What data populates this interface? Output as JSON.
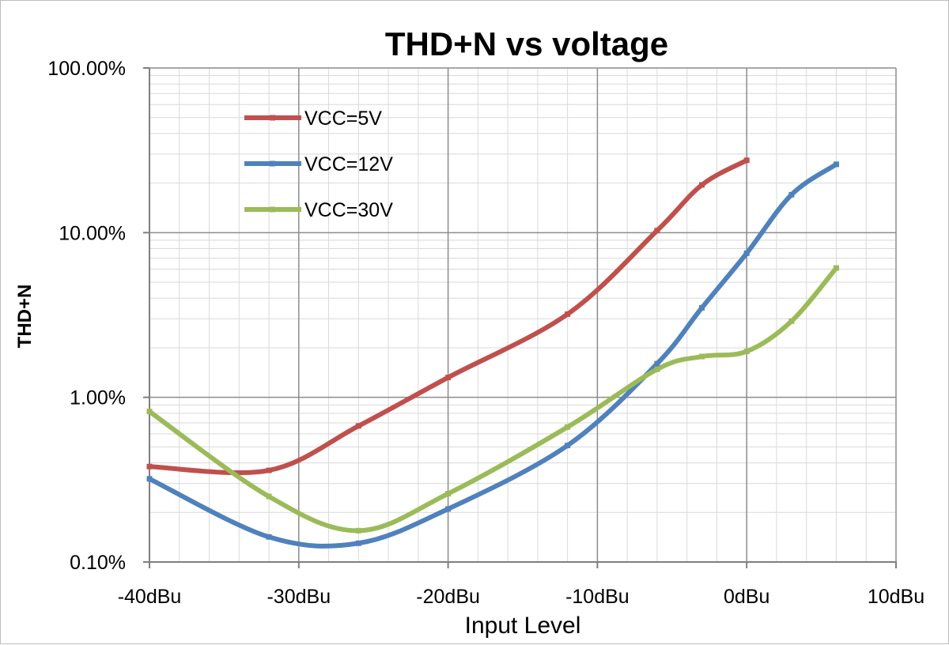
{
  "chart_data": {
    "type": "line",
    "title": "THD+N vs voltage",
    "xlabel": "Input Level",
    "ylabel": "THD+N",
    "x_scale": "linear",
    "y_scale": "log",
    "xlim": [
      -40,
      10
    ],
    "ylim": [
      0.1,
      100
    ],
    "x_ticks": [
      -40,
      -30,
      -20,
      -10,
      0,
      10
    ],
    "x_tick_labels": [
      "-40dBu",
      "-30dBu",
      "-20dBu",
      "-10dBu",
      "0dBu",
      "10dBu"
    ],
    "y_ticks": [
      0.1,
      1,
      10,
      100
    ],
    "y_tick_labels": [
      "0.10%",
      "1.00%",
      "10.00%",
      "100.00%"
    ],
    "grid": true,
    "legend_position": "top-left",
    "series": [
      {
        "name": "VCC=5V",
        "color": "#c0504d",
        "x": [
          -40,
          -32,
          -26,
          -20,
          -12,
          -6,
          -3,
          0
        ],
        "y": [
          0.38,
          0.36,
          0.67,
          1.32,
          3.2,
          10.3,
          19.5,
          27.5
        ]
      },
      {
        "name": "VCC=12V",
        "color": "#4f81bd",
        "x": [
          -40,
          -32,
          -26,
          -20,
          -12,
          -6,
          -3,
          0,
          3,
          6
        ],
        "y": [
          0.32,
          0.142,
          0.13,
          0.21,
          0.51,
          1.6,
          3.5,
          7.5,
          17,
          26
        ]
      },
      {
        "name": "VCC=30V",
        "color": "#9bbb59",
        "x": [
          -40,
          -32,
          -26,
          -20,
          -12,
          -6,
          -3,
          0,
          3,
          6
        ],
        "y": [
          0.82,
          0.25,
          0.155,
          0.26,
          0.66,
          1.48,
          1.77,
          1.9,
          2.9,
          6.1
        ]
      }
    ]
  }
}
